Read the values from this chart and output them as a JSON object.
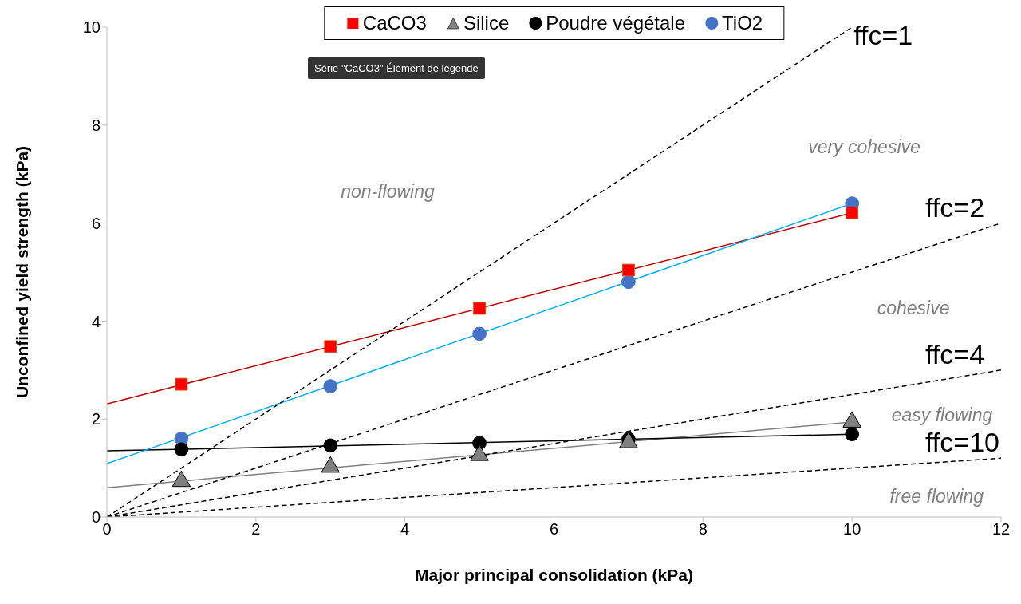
{
  "chart_data": {
    "type": "scatter",
    "xlabel": "Major principal consolidation (kPa)",
    "ylabel": "Unconfined yield strength (kPa)",
    "x": [
      1,
      3,
      5,
      7,
      10
    ],
    "series": [
      {
        "name": "CaCO3",
        "marker": "square",
        "color": "#ff0000",
        "values": [
          2.71,
          3.48,
          4.26,
          5.04,
          6.21
        ]
      },
      {
        "name": "Silice",
        "marker": "triangle",
        "color": "#808080",
        "values": [
          0.73,
          1.02,
          1.26,
          1.52,
          1.94
        ]
      },
      {
        "name": "Poudre végétale",
        "marker": "circle",
        "color": "#000000",
        "values": [
          1.38,
          1.46,
          1.51,
          1.59,
          1.69
        ]
      },
      {
        "name": "TiO2",
        "marker": "circle",
        "color": "#4472c4",
        "values": [
          1.6,
          2.67,
          3.74,
          4.8,
          6.4
        ]
      },
      {
        "type": "line",
        "marker": "none",
        "color": "#c00000",
        "x": [
          0,
          10
        ],
        "values": [
          2.31,
          6.21
        ]
      },
      {
        "type": "line",
        "marker": "none",
        "color": "#808080",
        "x": [
          0,
          10
        ],
        "values": [
          0.6,
          1.94
        ]
      },
      {
        "type": "line",
        "marker": "none",
        "color": "#000000",
        "x": [
          0,
          10
        ],
        "values": [
          1.35,
          1.69
        ]
      },
      {
        "type": "line",
        "marker": "none",
        "color": "#00b0f0",
        "x": [
          0,
          10
        ],
        "values": [
          1.09,
          6.4
        ]
      },
      {
        "name": "ffc=1",
        "type": "line",
        "marker": "none",
        "line_style": "dashed",
        "color": "#000000",
        "x": [
          0,
          10
        ],
        "values": [
          0,
          10
        ]
      },
      {
        "name": "ffc=2",
        "type": "line",
        "marker": "none",
        "line_style": "dashed",
        "color": "#000000",
        "x": [
          0,
          12
        ],
        "values": [
          0,
          6
        ]
      },
      {
        "name": "ffc=4",
        "type": "line",
        "marker": "none",
        "line_style": "dashed",
        "color": "#000000",
        "x": [
          0,
          12
        ],
        "values": [
          0,
          3
        ]
      },
      {
        "name": "ffc=10",
        "type": "line",
        "marker": "none",
        "line_style": "dashed",
        "color": "#000000",
        "x": [
          0,
          12
        ],
        "values": [
          0,
          1.2
        ]
      }
    ],
    "xlim": [
      0,
      12
    ],
    "xticks": [
      0,
      2,
      4,
      6,
      8,
      10,
      12
    ],
    "ylim": [
      0,
      10
    ],
    "yticks": [
      0,
      2,
      4,
      6,
      8,
      10
    ],
    "grid": false,
    "legend": "top",
    "annotations": [
      "non-flowing",
      "very cohesive",
      "cohesive",
      "easy flowing",
      "free flowing",
      "Série \"CaCO3\" Élément de légende"
    ]
  }
}
